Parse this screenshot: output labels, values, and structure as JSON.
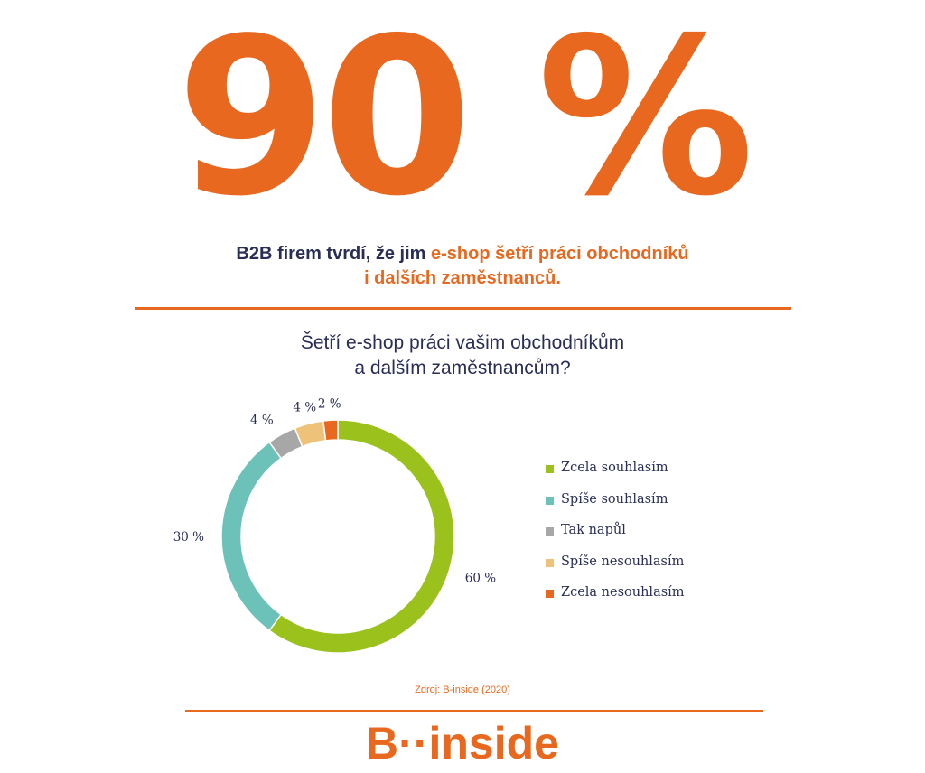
{
  "header": {
    "big_stat": "90 %",
    "headline_part1": "B2B firem tvrdí, že jim ",
    "headline_highlight_1": "e-shop šetří práci obchodníků",
    "headline_highlight_2": "i dalších zaměstnanců."
  },
  "chart_data": {
    "type": "pie",
    "title_line1": "Šetří e-shop práci  vašim obchodníkům",
    "title_line2": "a dalším zaměstnancům?",
    "donut": true,
    "unit": "%",
    "categories": [
      "Zcela souhlasím",
      "Spíše souhlasím",
      "Tak napůl",
      "Spíše nesouhlasím",
      "Zcela nesouhlasím"
    ],
    "values": [
      60,
      30,
      4,
      4,
      2
    ],
    "value_labels": [
      "60 %",
      "30 %",
      "4 %",
      "4 %",
      "2 %"
    ],
    "colors": [
      "#9bc11c",
      "#6cc2b8",
      "#a7a7a7",
      "#efc27a",
      "#e8681f"
    ],
    "legend_position": "right"
  },
  "footer": {
    "source": "Zdroj: B-inside (2020)",
    "logo_text": "B··inside"
  },
  "colors": {
    "accent": "#e8681f",
    "navy": "#2a2d55"
  }
}
